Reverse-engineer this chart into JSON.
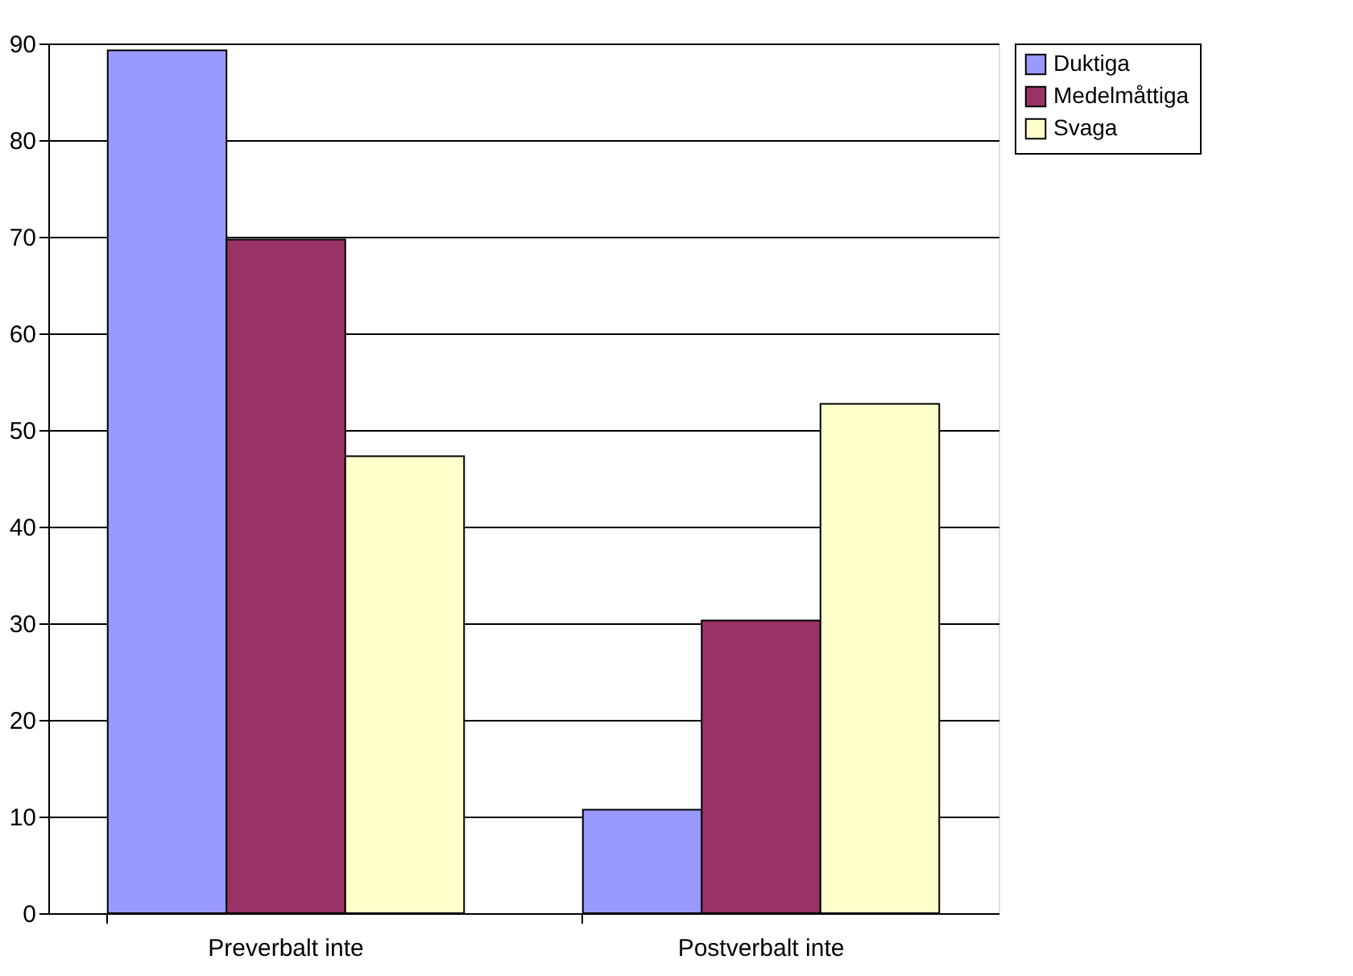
{
  "chart_data": {
    "type": "bar",
    "categories": [
      "Preverbalt inte",
      "Postverbalt inte"
    ],
    "series": [
      {
        "name": "Duktiga",
        "color": "#9999ff",
        "values": [
          89.3,
          10.7
        ]
      },
      {
        "name": "Medelmåttiga",
        "color": "#993366",
        "values": [
          69.7,
          30.3
        ]
      },
      {
        "name": "Svaga",
        "color": "#ffffcc",
        "values": [
          47.3,
          52.7
        ]
      }
    ],
    "ylim": [
      0,
      90
    ],
    "yticks": [
      0,
      10,
      20,
      30,
      40,
      50,
      60,
      70,
      80,
      90
    ],
    "grid": "y",
    "legend": "right"
  }
}
